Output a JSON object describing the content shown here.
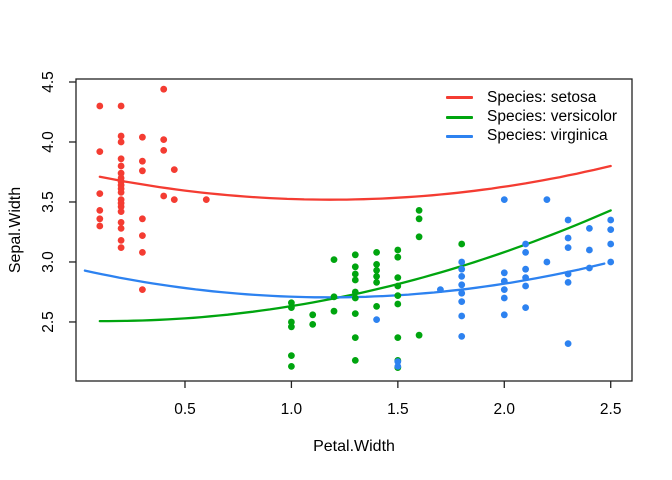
{
  "chart_data": {
    "type": "scatter",
    "title": "",
    "xlabel": "Petal.Width",
    "ylabel": "Sepal.Width",
    "x_tick_labels": [
      "0.5",
      "1.0",
      "1.5",
      "2.0",
      "2.5"
    ],
    "x_tick_values": [
      0.5,
      1.0,
      1.5,
      2.0,
      2.5
    ],
    "y_tick_labels": [
      "2.5",
      "3.0",
      "3.5",
      "4.0",
      "4.5"
    ],
    "y_tick_values": [
      2.5,
      3.0,
      3.5,
      4.0,
      4.5
    ],
    "xlim": [
      -0.012,
      2.6
    ],
    "ylim": [
      2.008,
      4.525
    ],
    "grid": false,
    "legend_position": "top-right-inside",
    "point_style": "filled-circle",
    "axis_color": "#222222",
    "text_color": "#000000",
    "series": [
      {
        "name": "Species: setosa",
        "color": "#F43C32",
        "curve": {
          "type": "quadratic",
          "a": 3.7468,
          "b": -0.3842,
          "c": 0.1622,
          "x_range": [
            0.1,
            2.5
          ]
        },
        "points": [
          [
            0.1,
            4.3
          ],
          [
            0.2,
            4.3
          ],
          [
            0.4,
            4.44
          ],
          [
            0.2,
            4.05
          ],
          [
            0.2,
            4.0
          ],
          [
            0.3,
            4.04
          ],
          [
            0.4,
            4.02
          ],
          [
            0.1,
            3.92
          ],
          [
            0.4,
            3.93
          ],
          [
            0.2,
            3.86
          ],
          [
            0.3,
            3.84
          ],
          [
            0.2,
            3.8
          ],
          [
            0.3,
            3.76
          ],
          [
            0.45,
            3.77
          ],
          [
            0.2,
            3.74
          ],
          [
            0.2,
            3.7
          ],
          [
            0.2,
            3.67
          ],
          [
            0.2,
            3.64
          ],
          [
            0.2,
            3.61
          ],
          [
            0.1,
            3.57
          ],
          [
            0.2,
            3.58
          ],
          [
            0.4,
            3.55
          ],
          [
            0.45,
            3.52
          ],
          [
            0.6,
            3.52
          ],
          [
            0.2,
            3.52
          ],
          [
            0.2,
            3.49
          ],
          [
            0.2,
            3.46
          ],
          [
            0.1,
            3.43
          ],
          [
            0.2,
            3.42
          ],
          [
            0.1,
            3.36
          ],
          [
            0.3,
            3.36
          ],
          [
            0.2,
            3.33
          ],
          [
            0.1,
            3.3
          ],
          [
            0.2,
            3.28
          ],
          [
            0.3,
            3.22
          ],
          [
            0.2,
            3.18
          ],
          [
            0.2,
            3.12
          ],
          [
            0.3,
            3.08
          ],
          [
            0.3,
            2.77
          ]
        ]
      },
      {
        "name": "Species: versicolor",
        "color": "#00A50F",
        "curve": {
          "type": "quadratic",
          "a": 2.51,
          "b": -0.042,
          "c": 0.164,
          "x_range": [
            0.1,
            2.5
          ]
        },
        "points": [
          [
            1.0,
            2.66
          ],
          [
            1.0,
            2.62
          ],
          [
            1.0,
            2.5
          ],
          [
            1.0,
            2.46
          ],
          [
            1.0,
            2.22
          ],
          [
            1.0,
            2.13
          ],
          [
            1.1,
            2.56
          ],
          [
            1.1,
            2.48
          ],
          [
            1.2,
            3.02
          ],
          [
            1.2,
            2.71
          ],
          [
            1.2,
            2.59
          ],
          [
            1.3,
            3.06
          ],
          [
            1.3,
            2.96
          ],
          [
            1.3,
            2.9
          ],
          [
            1.3,
            2.85
          ],
          [
            1.3,
            2.75
          ],
          [
            1.3,
            2.7
          ],
          [
            1.3,
            2.57
          ],
          [
            1.3,
            2.37
          ],
          [
            1.3,
            2.18
          ],
          [
            1.4,
            3.08
          ],
          [
            1.4,
            2.98
          ],
          [
            1.4,
            2.93
          ],
          [
            1.4,
            2.88
          ],
          [
            1.4,
            2.83
          ],
          [
            1.4,
            2.63
          ],
          [
            1.5,
            3.1
          ],
          [
            1.5,
            3.04
          ],
          [
            1.5,
            2.87
          ],
          [
            1.5,
            2.8
          ],
          [
            1.5,
            2.72
          ],
          [
            1.5,
            2.65
          ],
          [
            1.5,
            2.37
          ],
          [
            1.5,
            2.18
          ],
          [
            1.5,
            2.12
          ],
          [
            1.6,
            3.43
          ],
          [
            1.6,
            3.36
          ],
          [
            1.6,
            3.21
          ],
          [
            1.6,
            2.39
          ],
          [
            1.8,
            3.15
          ]
        ]
      },
      {
        "name": "Species: virginica",
        "color": "#2D82F0",
        "curve": {
          "type": "quadratic",
          "a": 2.9395,
          "b": -0.3978,
          "c": 0.1688,
          "x_range": [
            0.03,
            2.5
          ]
        },
        "points": [
          [
            1.4,
            2.52
          ],
          [
            1.5,
            2.17
          ],
          [
            1.5,
            2.13
          ],
          [
            1.7,
            2.77
          ],
          [
            1.8,
            3.0
          ],
          [
            1.8,
            2.94
          ],
          [
            1.8,
            2.88
          ],
          [
            1.8,
            2.81
          ],
          [
            1.8,
            2.74
          ],
          [
            1.8,
            2.67
          ],
          [
            1.8,
            2.55
          ],
          [
            1.8,
            2.38
          ],
          [
            2.0,
            3.52
          ],
          [
            2.0,
            2.91
          ],
          [
            2.0,
            2.84
          ],
          [
            2.0,
            2.77
          ],
          [
            2.0,
            2.7
          ],
          [
            2.0,
            2.56
          ],
          [
            2.1,
            3.15
          ],
          [
            2.1,
            3.08
          ],
          [
            2.1,
            2.94
          ],
          [
            2.1,
            2.87
          ],
          [
            2.1,
            2.8
          ],
          [
            2.1,
            2.62
          ],
          [
            2.2,
            3.52
          ],
          [
            2.2,
            3.0
          ],
          [
            2.3,
            3.35
          ],
          [
            2.3,
            3.2
          ],
          [
            2.3,
            3.12
          ],
          [
            2.3,
            2.9
          ],
          [
            2.3,
            2.83
          ],
          [
            2.3,
            2.32
          ],
          [
            2.4,
            3.28
          ],
          [
            2.4,
            3.1
          ],
          [
            2.4,
            2.95
          ],
          [
            2.5,
            3.35
          ],
          [
            2.5,
            3.27
          ],
          [
            2.5,
            3.15
          ],
          [
            2.5,
            3.0
          ]
        ]
      }
    ]
  }
}
